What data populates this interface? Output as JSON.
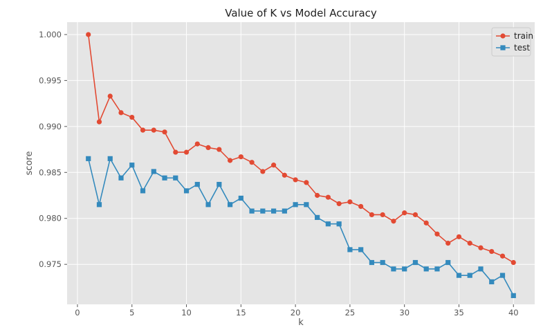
{
  "chart_data": {
    "type": "line",
    "title": "Value of K vs Model Accuracy",
    "xlabel": "k",
    "ylabel": "score",
    "xlim": [
      -0.95,
      41.95
    ],
    "ylim": [
      0.97065,
      1.00135
    ],
    "x_ticks": [
      0,
      5,
      10,
      15,
      20,
      25,
      30,
      35,
      40
    ],
    "y_ticks": [
      0.975,
      0.98,
      0.985,
      0.99,
      0.995,
      1.0
    ],
    "y_tick_labels": [
      "0.975",
      "0.980",
      "0.985",
      "0.990",
      "0.995",
      "1.000"
    ],
    "grid": true,
    "legend_position": "top-right",
    "x": [
      1,
      2,
      3,
      4,
      5,
      6,
      7,
      8,
      9,
      10,
      11,
      12,
      13,
      14,
      15,
      16,
      17,
      18,
      19,
      20,
      21,
      22,
      23,
      24,
      25,
      26,
      27,
      28,
      29,
      30,
      31,
      32,
      33,
      34,
      35,
      36,
      37,
      38,
      39,
      40
    ],
    "series": [
      {
        "name": "train",
        "color": "#e24a33",
        "marker": "circle",
        "values": [
          1.0,
          0.9905,
          0.9933,
          0.9915,
          0.991,
          0.9896,
          0.9896,
          0.9894,
          0.9872,
          0.9872,
          0.9881,
          0.9877,
          0.9875,
          0.9863,
          0.9867,
          0.9861,
          0.9851,
          0.9858,
          0.9847,
          0.9842,
          0.9839,
          0.9825,
          0.9823,
          0.9816,
          0.9818,
          0.9813,
          0.9804,
          0.9804,
          0.9797,
          0.9806,
          0.9804,
          0.9795,
          0.9783,
          0.9773,
          0.978,
          0.9773,
          0.9768,
          0.9764,
          0.9759,
          0.9752
        ]
      },
      {
        "name": "test",
        "color": "#348abd",
        "marker": "square",
        "values": [
          0.9865,
          0.9815,
          0.9865,
          0.9844,
          0.9858,
          0.983,
          0.9851,
          0.9844,
          0.9844,
          0.983,
          0.9837,
          0.9815,
          0.9837,
          0.9815,
          0.9822,
          0.9808,
          0.9808,
          0.9808,
          0.9808,
          0.9815,
          0.9815,
          0.9801,
          0.9794,
          0.9794,
          0.9766,
          0.9766,
          0.9752,
          0.9752,
          0.9745,
          0.9745,
          0.9752,
          0.9745,
          0.9745,
          0.9752,
          0.9738,
          0.9738,
          0.9745,
          0.9731,
          0.9738,
          0.9716
        ]
      }
    ]
  }
}
